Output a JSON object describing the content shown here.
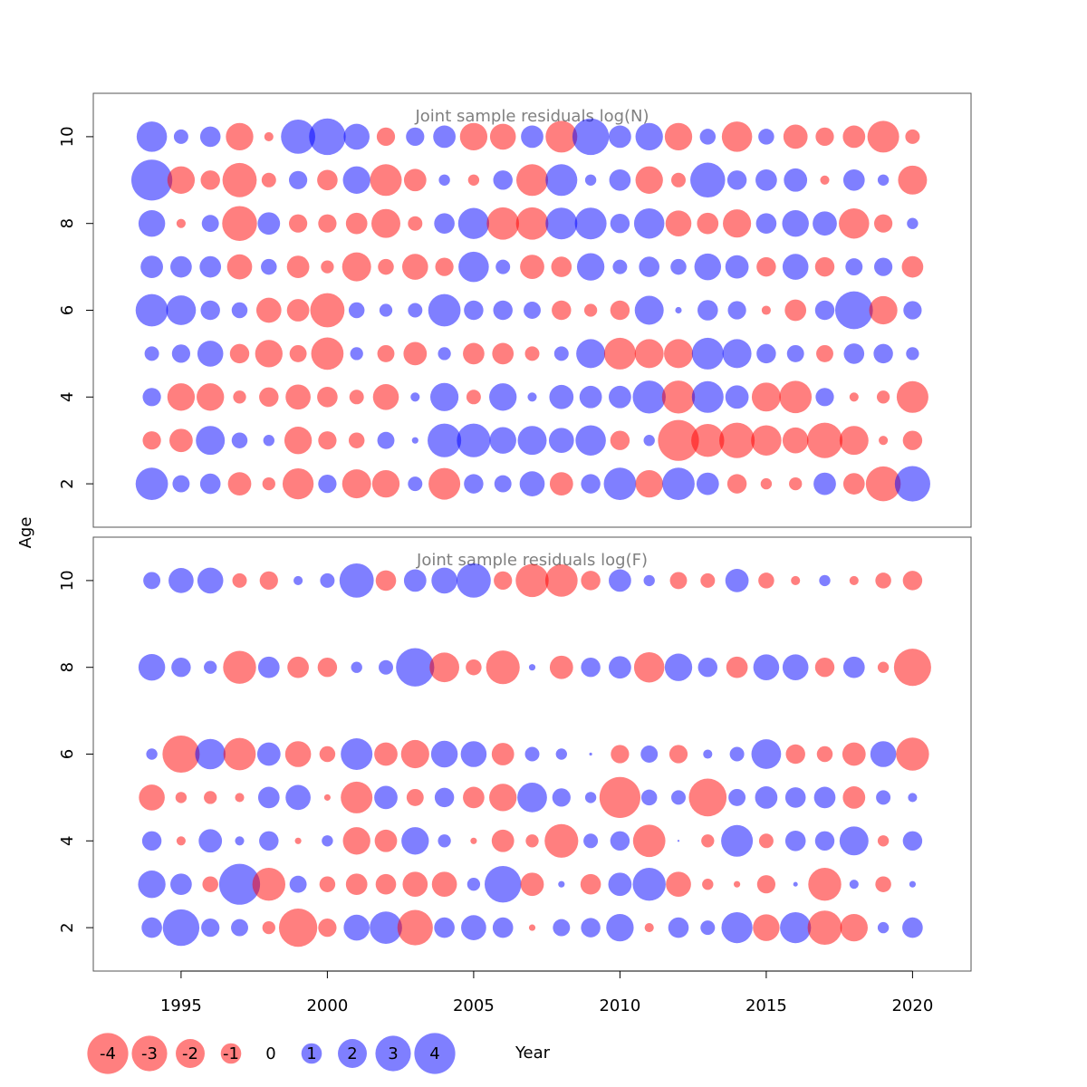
{
  "chart_data": {
    "type": "scatter",
    "subtype": "bubble",
    "xlabel": "Year",
    "ylabel": "Age",
    "xlim": [
      1992,
      2022
    ],
    "x_ticks": [
      "1995",
      "2000",
      "2005",
      "2010",
      "2015",
      "2020"
    ],
    "colors": {
      "negative": "#ff0000",
      "positive": "#0000ff",
      "opacity": 0.5,
      "frame": "#555555",
      "title": "#808080"
    },
    "years": [
      1994,
      1995,
      1996,
      1997,
      1998,
      1999,
      2000,
      2001,
      2002,
      2003,
      2004,
      2005,
      2006,
      2007,
      2008,
      2009,
      2010,
      2011,
      2012,
      2013,
      2014,
      2015,
      2016,
      2017,
      2018,
      2019,
      2020
    ],
    "legend": {
      "values": [
        -4,
        -3,
        -2,
        -1,
        0,
        1,
        2,
        3,
        4
      ],
      "labels": [
        "-4",
        "-3",
        "-2",
        "-1",
        "0",
        "1",
        "2",
        "3",
        "4"
      ]
    },
    "panels": [
      {
        "title": "Joint sample residuals log(N)",
        "ylim": [
          1,
          11
        ],
        "y_ticks": [
          "2",
          "4",
          "6",
          "8",
          "10"
        ],
        "ages": [
          2,
          3,
          4,
          5,
          6,
          7,
          8,
          9,
          10
        ],
        "residuals": {
          "10": [
            2.2,
            0.5,
            1,
            -1.8,
            -0.2,
            2.8,
            3.2,
            1.6,
            -0.8,
            0.8,
            1.2,
            -1.8,
            -1.6,
            1.2,
            -2.4,
            3.2,
            1.2,
            1.8,
            -1.8,
            0.6,
            -2.2,
            0.6,
            -1.4,
            -0.8,
            -1.2,
            -2.4,
            -0.5
          ],
          "9": [
            4,
            -1.8,
            -0.9,
            -2.8,
            -0.5,
            0.8,
            -1,
            1.8,
            -2.4,
            -1.2,
            0.3,
            -0.3,
            0.9,
            -2.4,
            2.4,
            0.3,
            1.1,
            -1.8,
            -0.5,
            2.9,
            0.9,
            1.1,
            1.3,
            -0.2,
            1.1,
            0.3,
            -2
          ],
          "8": [
            1.7,
            -0.2,
            0.7,
            -2.9,
            1.2,
            -0.8,
            -0.8,
            -1.1,
            -2,
            -0.5,
            1,
            2.3,
            -2.5,
            -2.5,
            2.4,
            2.4,
            0.9,
            2.2,
            -1.6,
            -1.1,
            -1.9,
            1,
            1.7,
            1.4,
            -2.2,
            -0.8,
            0.3
          ],
          "7": [
            1.2,
            1.1,
            1.1,
            -1.5,
            0.6,
            -1.2,
            -0.4,
            -2,
            -0.6,
            -1.6,
            -0.8,
            2.2,
            0.5,
            -1.4,
            -1,
            1.8,
            0.5,
            1,
            0.6,
            1.7,
            1.3,
            -0.9,
            1.6,
            -0.9,
            0.7,
            0.8,
            -1.1
          ],
          "6": [
            2.5,
            2.1,
            0.9,
            0.6,
            -1.5,
            -1.2,
            -2.8,
            0.6,
            0.4,
            0.5,
            2.5,
            0.9,
            0.9,
            0.7,
            -0.9,
            -0.4,
            -0.9,
            2,
            0.1,
            1,
            0.8,
            -0.2,
            -1.1,
            0.9,
            3.4,
            -1.9,
            0.8
          ],
          "5": [
            0.5,
            0.8,
            1.6,
            -0.9,
            -1.8,
            -0.7,
            -2.5,
            0.4,
            -0.7,
            -1.3,
            0.4,
            -1.1,
            -1.1,
            -0.5,
            0.5,
            2,
            -2.4,
            -2,
            -2,
            2.4,
            2,
            0.9,
            0.7,
            -0.7,
            1,
            0.9,
            0.4
          ],
          "4": [
            0.8,
            -1.8,
            -1.8,
            -0.4,
            -0.9,
            -1.5,
            -1,
            -0.5,
            -1.6,
            0.2,
            1.9,
            -0.5,
            1.8,
            0.2,
            1.4,
            1.2,
            1.2,
            2.6,
            -2.6,
            2.4,
            1.3,
            -2,
            -2.5,
            0.8,
            -0.2,
            -0.4,
            -2.4
          ],
          "3": [
            -0.8,
            -1.3,
            2,
            0.6,
            0.3,
            -1.8,
            -0.8,
            -0.6,
            0.7,
            0.1,
            2.7,
            2.7,
            1.7,
            2,
            1.5,
            2.2,
            -0.9,
            0.3,
            -4,
            -2.6,
            -3,
            -2.2,
            -1.6,
            -3,
            -2,
            -0.2,
            -0.9
          ],
          "2": [
            2.5,
            0.7,
            1,
            -1.3,
            -0.4,
            -2.3,
            0.8,
            -2,
            -1.8,
            0.5,
            -2.4,
            0.9,
            0.7,
            1.5,
            -1.3,
            0.9,
            2.5,
            -1.8,
            2.5,
            1.2,
            -0.9,
            -0.3,
            -0.4,
            1.2,
            -1.1,
            -2.9,
            3
          ]
        }
      },
      {
        "title": "Joint sample residuals log(F)",
        "ylim": [
          1,
          11
        ],
        "y_ticks": [
          "2",
          "4",
          "6",
          "8",
          "10"
        ],
        "ages": [
          2,
          3,
          4,
          5,
          6,
          8,
          10
        ],
        "residuals": {
          "10": [
            0.7,
            1.5,
            1.6,
            -0.5,
            -0.8,
            0.2,
            0.5,
            2.8,
            -1,
            1.2,
            1.6,
            2.8,
            -0.8,
            -2.6,
            -2.5,
            -0.9,
            1.2,
            0.3,
            -0.7,
            -0.5,
            1.3,
            -0.6,
            -0.2,
            0.3,
            -0.2,
            -0.6,
            -0.9
          ],
          "8": [
            1.7,
            0.9,
            0.4,
            -2.6,
            1.1,
            -1.1,
            -0.9,
            0.3,
            0.5,
            3.5,
            -2.1,
            -0.6,
            -2.7,
            0.1,
            -1.3,
            0.9,
            1.2,
            -2.2,
            1.8,
            0.9,
            -1.1,
            1.6,
            1.6,
            -0.9,
            1.1,
            -0.3,
            -3.3
          ],
          "6": [
            0.3,
            -3.3,
            2.2,
            -2.5,
            1.3,
            -1.6,
            -0.6,
            2.4,
            -1.3,
            -1.9,
            1.7,
            1.6,
            -1.2,
            0.5,
            0.3,
            0.02,
            -0.8,
            0.7,
            -0.8,
            0.2,
            0.5,
            2.1,
            -0.9,
            -0.6,
            -1.3,
            1.6,
            -2.6
          ],
          "5": [
            -1.6,
            -0.3,
            -0.4,
            -0.2,
            1.1,
            1.5,
            -0.1,
            -2.4,
            1.3,
            -0.7,
            0.9,
            -1.1,
            -1.8,
            2.1,
            0.8,
            0.3,
            -4,
            0.6,
            0.5,
            -3.4,
            0.7,
            1.2,
            1,
            1.1,
            -1.2,
            0.5,
            0.2
          ],
          "4": [
            0.9,
            -0.2,
            1.3,
            0.2,
            0.9,
            -0.1,
            0.3,
            -1.8,
            -1.2,
            1.8,
            0.4,
            -0.1,
            -1.2,
            -0.4,
            -2.7,
            0.5,
            0.9,
            -2.5,
            0.01,
            -0.4,
            2.4,
            -0.5,
            1,
            0.9,
            2,
            -0.3,
            0.9
          ],
          "3": [
            1.8,
            1.1,
            -0.6,
            4,
            -2.6,
            0.7,
            -0.6,
            -1.1,
            -1,
            -1.5,
            -1.5,
            0.4,
            3.2,
            -1.3,
            0.1,
            -1,
            1.3,
            2.6,
            -1.5,
            -0.3,
            -0.1,
            -0.8,
            0.05,
            -2.6,
            0.2,
            -0.6,
            0.1
          ],
          "2": [
            1,
            3.2,
            0.8,
            0.7,
            -0.4,
            -3.5,
            -0.8,
            1.6,
            2.5,
            -3,
            1,
            1.5,
            1,
            -0.1,
            0.7,
            0.9,
            1.8,
            -0.2,
            1,
            0.5,
            2.3,
            -1.7,
            2.3,
            -2.8,
            -1.8,
            0.3,
            1
          ]
        }
      }
    ]
  }
}
